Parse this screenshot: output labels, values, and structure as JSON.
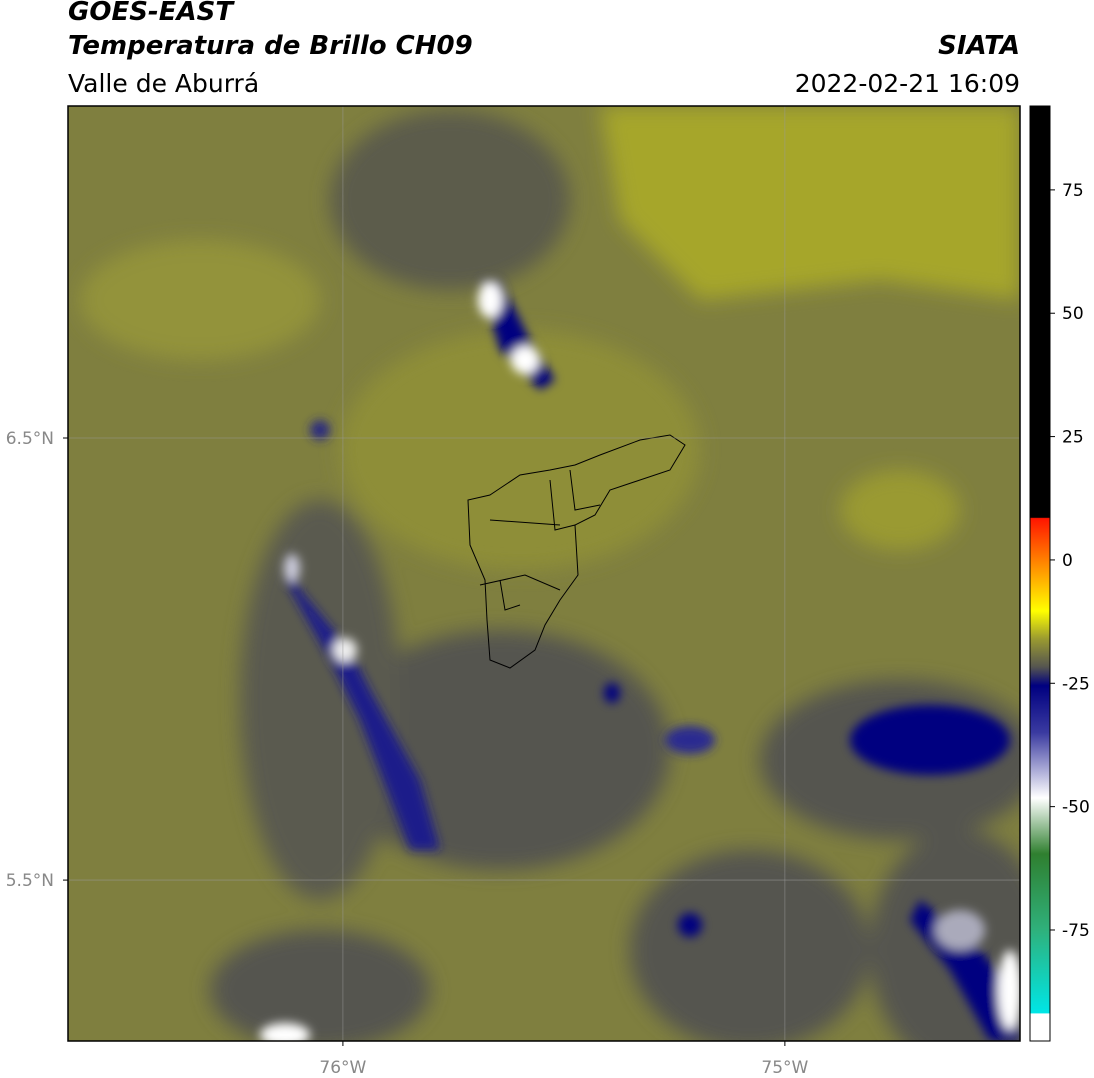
{
  "header": {
    "title": "GOES-EAST",
    "subtitle": "Temperatura de Brillo CH09",
    "region": "Valle de Aburrá",
    "source": "SIATA",
    "datetime": "2022-02-21 16:09"
  },
  "map": {
    "xlim": [
      -76.622,
      -74.468
    ],
    "ylim": [
      5.136,
      7.251
    ],
    "yticks": [
      {
        "value": 6.5,
        "label": "6.5°N"
      },
      {
        "value": 5.5,
        "label": "5.5°N"
      }
    ],
    "xticks": [
      {
        "value": -76,
        "label": "76°W"
      },
      {
        "value": -75,
        "label": "75°W"
      }
    ]
  },
  "colorbar": {
    "lim": [
      -97.5,
      92
    ],
    "ticks": [
      75,
      50,
      25,
      0,
      -25,
      -50,
      -75
    ]
  }
}
